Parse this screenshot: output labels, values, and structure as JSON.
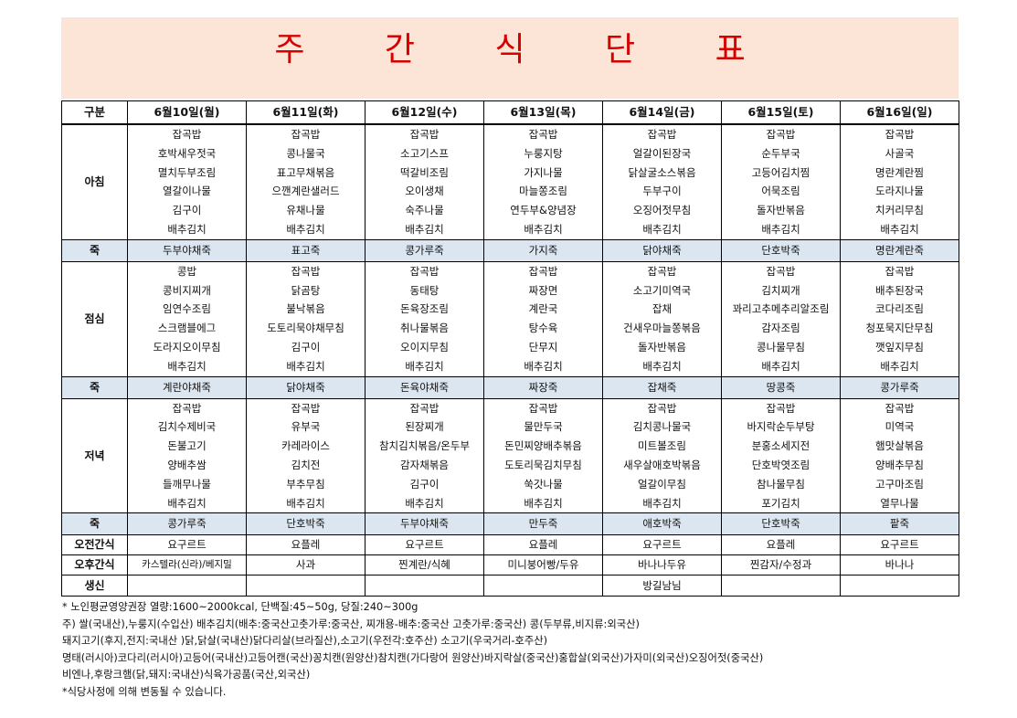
{
  "title": "주 간 식 단 표",
  "header": {
    "category": "구분",
    "days": [
      "6월10일(월)",
      "6월11일(화)",
      "6월12일(수)",
      "6월13일(목)",
      "6월14일(금)",
      "6월15일(토)",
      "6월16일(일)"
    ]
  },
  "breakfast": {
    "label": "아침",
    "days": [
      [
        "잡곡밥",
        "호박새우젓국",
        "멸치두부조림",
        "열갈이나물",
        "김구이",
        "배추김치"
      ],
      [
        "잡곡밥",
        "콩나물국",
        "표고무채볶음",
        "으깬계란샐러드",
        "유채나물",
        "배추김치"
      ],
      [
        "잡곡밥",
        "소고기스프",
        "떡갈비조림",
        "오이생채",
        "숙주나물",
        "배추김치"
      ],
      [
        "잡곡밥",
        "누룽지탕",
        "가지나물",
        "마늘쫑조림",
        "연두부&양념장",
        "배추김치"
      ],
      [
        "잡곡밥",
        "얼갈이된장국",
        "닭살굴소스볶음",
        "두부구이",
        "오징어젓무침",
        "배추김치"
      ],
      [
        "잡곡밥",
        "순두부국",
        "고등어김치찜",
        "어묵조림",
        "돌자반볶음",
        "배추김치"
      ],
      [
        "잡곡밥",
        "사골국",
        "명란계란찜",
        "도라지나물",
        "치커리무침",
        "배추김치"
      ]
    ]
  },
  "porridge1": {
    "label": "죽",
    "days": [
      "두부야채죽",
      "표고죽",
      "콩가루죽",
      "가지죽",
      "닭야채죽",
      "단호박죽",
      "명란계란죽"
    ]
  },
  "lunch": {
    "label": "점심",
    "days": [
      [
        "콩밥",
        "콩비지찌개",
        "임연수조림",
        "스크램블에그",
        "도라지오이무침",
        "배추김치"
      ],
      [
        "잡곡밥",
        "닭곰탕",
        "불낙볶음",
        "도토리묵야채무침",
        "김구이",
        "배추김치"
      ],
      [
        "잡곡밥",
        "동태탕",
        "돈육장조림",
        "취나물볶음",
        "오이지무침",
        "배추김치"
      ],
      [
        "잡곡밥",
        "짜장면",
        "계란국",
        "탕수육",
        "단무지",
        "배추김치"
      ],
      [
        "잡곡밥",
        "소고기미역국",
        "잡채",
        "건새우마늘쫑볶음",
        "돌자반볶음",
        "배추김치"
      ],
      [
        "잡곡밥",
        "김치찌개",
        "꽈리고추메추리알조림",
        "감자조림",
        "콩나물무침",
        "배추김치"
      ],
      [
        "잡곡밥",
        "배추된장국",
        "코다리조림",
        "청포묵지단무침",
        "깻잎지무침",
        "배추김치"
      ]
    ]
  },
  "porridge2": {
    "label": "죽",
    "days": [
      "계란야채죽",
      "닭야채죽",
      "돈육야채죽",
      "짜장죽",
      "잡채죽",
      "땅콩죽",
      "콩가루죽"
    ]
  },
  "dinner": {
    "label": "저녁",
    "days": [
      [
        "잡곡밥",
        "김치수제비국",
        "돈불고기",
        "양배추쌈",
        "들깨무나물",
        "배추김치"
      ],
      [
        "잡곡밥",
        "유부국",
        "카레라이스",
        "김치전",
        "부추무침",
        "배추김치"
      ],
      [
        "잡곡밥",
        "된장찌개",
        "참치김치볶음/온두부",
        "감자채볶음",
        "김구이",
        "배추김치"
      ],
      [
        "잡곡밥",
        "물만두국",
        "돈민찌양배추볶음",
        "도토리묵김치무침",
        "쑥갓나물",
        "배추김치"
      ],
      [
        "잡곡밥",
        "김치콩나물국",
        "미트볼조림",
        "새우살애호박볶음",
        "얼갈이무침",
        "배추김치"
      ],
      [
        "잡곡밥",
        "바지락순두부탕",
        "분홍소세지전",
        "단호박엿조림",
        "참나물무침",
        "포기김치"
      ],
      [
        "잡곡밥",
        "미역국",
        "햄맛살볶음",
        "양배추무침",
        "고구마조림",
        "열무나물"
      ]
    ]
  },
  "porridge3": {
    "label": "죽",
    "days": [
      "콩가루죽",
      "단호박죽",
      "두부야채죽",
      "만두죽",
      "애호박죽",
      "단호박죽",
      "팥죽"
    ]
  },
  "am_snack": {
    "label": "오전간식",
    "days": [
      "요구르트",
      "요플레",
      "요구르트",
      "요플레",
      "요구르트",
      "요플레",
      "요구르트"
    ]
  },
  "pm_snack": {
    "label": "오후간식",
    "days": [
      "카스텔라(신라)/베지밀",
      "사과",
      "찐계란/식혜",
      "미니붕어빵/두유",
      "바나나두유",
      "찐감자/수정과",
      "바나나"
    ]
  },
  "birthday": {
    "label": "생신",
    "days": [
      "",
      "",
      "",
      "",
      "방길남님",
      "",
      ""
    ]
  },
  "notes": [
    "* 노인평균영양권장 열량:1600~2000kcal, 단백질:45~50g, 당질:240~300g",
    "주) 쌀(국내산),누룽지(수입산) 배추김치(배추:중국산고춧가루:중국산, 찌개용-배추:중국산 고춧가루:중국산) 콩(두부류,비지류:외국산)",
    "돼지고기(후지,전지:국내산 )닭,닭살(국내산)닭다리살(브라질산),소고기(우전각:호주산) 소고기(우국거리-호주산)",
    "명태(러시아)코다리(러시아)고등어(국내산)고등어캔(국산)꽁치캔(원양산)참치캔(가다랑어 원양산)바지락살(중국산)홍합살(외국산)가자미(외국산)오징어젓(중국산)",
    "비엔나,후랑크햄(닭,돼지:국내산)식육가공품(국산,외국산)",
    "*식당사정에 의해 변동될 수 있습니다."
  ]
}
